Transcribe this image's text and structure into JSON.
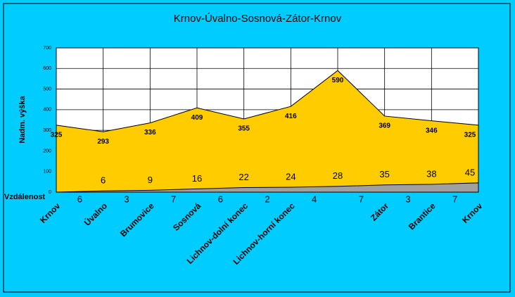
{
  "chart_data": {
    "type": "area",
    "title": "Krnov-Úvalno-Sosnová-Zátor-Krnov",
    "y_label": "Nadm. výška",
    "categories": [
      "Krnov",
      "Úvalno",
      "Brumovice",
      "Sosnová",
      "Lichnov-dolní konec",
      "Lichnov-horní konec",
      null,
      "Zátor",
      "Brantice",
      "Krnov"
    ],
    "series": [
      {
        "name": "Nadmořská výška",
        "color": "#ffcc00",
        "values": [
          325,
          293,
          336,
          409,
          355,
          416,
          590,
          369,
          346,
          325
        ]
      },
      {
        "name": "Vzdálenost",
        "color": "#a0a0a0",
        "values": [
          0,
          6,
          9,
          16,
          22,
          24,
          28,
          35,
          38,
          45
        ],
        "value_labels": [
          null,
          "6",
          "9",
          "16",
          "22",
          "24",
          "28",
          "35",
          "38",
          "45"
        ]
      }
    ],
    "segment_label": "Vzdálenost",
    "segments": [
      6,
      3,
      7,
      6,
      2,
      4,
      7,
      3,
      7
    ],
    "ylim": [
      0,
      700
    ],
    "yticks": [
      0,
      100,
      200,
      300,
      400,
      500,
      600,
      700
    ],
    "grid": true
  }
}
